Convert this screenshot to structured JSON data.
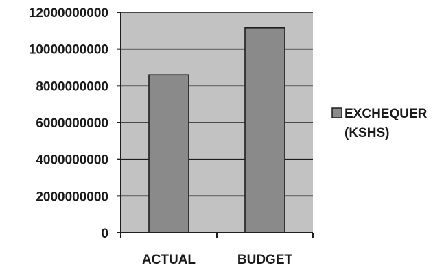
{
  "chart_data": {
    "type": "bar",
    "categories": [
      "ACTUAL",
      "BUDGET"
    ],
    "series": [
      {
        "name": "EXCHEQUER (KSHS)",
        "values": [
          8600000000,
          11150000000
        ]
      }
    ],
    "yticks": [
      "0",
      "2000000000",
      "4000000000",
      "6000000000",
      "8000000000",
      "10000000000",
      "12000000000"
    ],
    "ylim": [
      0,
      12000000000
    ],
    "grid": true,
    "legend": {
      "position": "right",
      "lines": [
        "EXCHEQUER",
        "(KSHS)"
      ]
    },
    "colors": {
      "plot_background": "#c2c2c2",
      "bar_fill": "#8a8a8a",
      "bar_stroke": "#1e1e1e",
      "gridline": "#1e1e1e",
      "legend_swatch": "#8a8a8a"
    }
  }
}
